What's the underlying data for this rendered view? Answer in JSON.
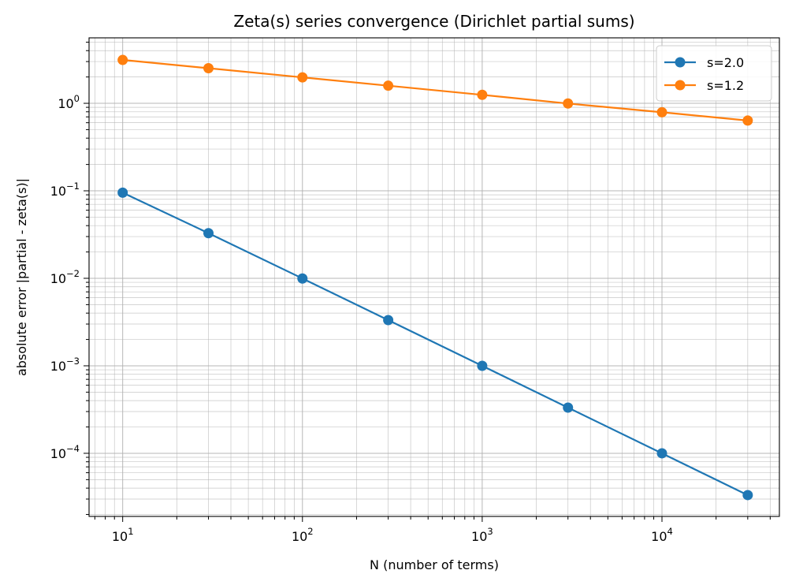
{
  "chart_data": {
    "type": "line",
    "title": "Zeta(s) series convergence (Dirichlet partial sums)",
    "xlabel": "N (number of terms)",
    "ylabel": "absolute error |partial - zeta(s)|",
    "xscale": "log",
    "yscale": "log",
    "xlim": [
      6.5,
      45000
    ],
    "ylim": [
      1.9e-05,
      5.6
    ],
    "x_tick_labels": [
      {
        "base": "10",
        "exp": "1"
      },
      {
        "base": "10",
        "exp": "2"
      },
      {
        "base": "10",
        "exp": "3"
      },
      {
        "base": "10",
        "exp": "4"
      }
    ],
    "y_tick_labels": [
      {
        "base": "10",
        "exp": "0"
      },
      {
        "base": "10",
        "exp": "−1"
      },
      {
        "base": "10",
        "exp": "−2"
      },
      {
        "base": "10",
        "exp": "−3"
      },
      {
        "base": "10",
        "exp": "−4"
      }
    ],
    "x_ticks": [
      10,
      100,
      1000,
      10000
    ],
    "y_ticks": [
      1,
      0.1,
      0.01,
      0.001,
      0.0001
    ],
    "grid": true,
    "legend_position": "top-right",
    "x": [
      10,
      30,
      100,
      300,
      1000,
      3000,
      10000,
      30000
    ],
    "series": [
      {
        "name": "s=2.0",
        "color": "#1f77b4",
        "values": [
          0.0952,
          0.0328,
          0.00995,
          0.00333,
          0.001,
          0.000333,
          0.0001,
          3.33e-05
        ]
      },
      {
        "name": "s=1.2",
        "color": "#ff7f0e",
        "values": [
          3.13,
          2.52,
          1.98,
          1.59,
          1.25,
          0.995,
          0.79,
          0.635
        ]
      }
    ]
  }
}
